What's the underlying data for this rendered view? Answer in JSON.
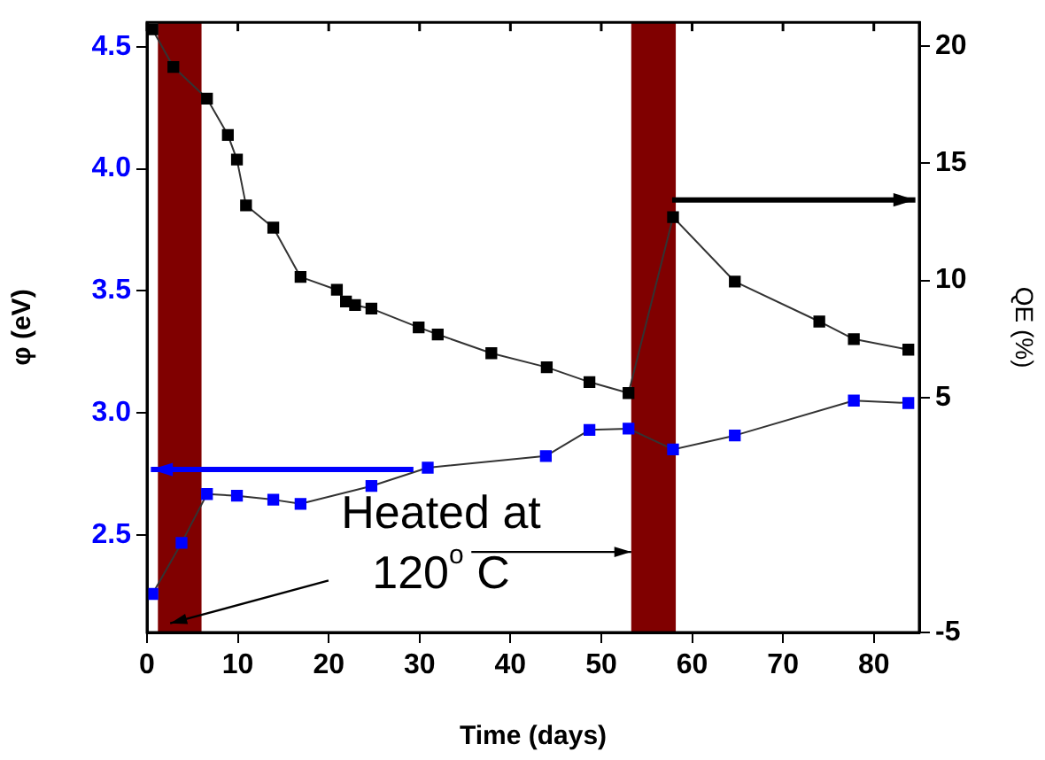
{
  "chart_data": {
    "type": "line",
    "xlabel": "Time (days)",
    "ylabel": "φ (eV)",
    "y2label": "QE (%)",
    "xlim": [
      0,
      85
    ],
    "xticks": [
      0,
      10,
      20,
      30,
      40,
      50,
      60,
      70,
      80
    ],
    "ylim": [
      2.1,
      4.6
    ],
    "yticks": [
      {
        "value": 2.5,
        "label": "2.5"
      },
      {
        "value": 3,
        "label": "3.0"
      },
      {
        "value": 3.5,
        "label": "3.5"
      },
      {
        "value": 4,
        "label": "4.0"
      },
      {
        "value": 4.5,
        "label": "4.5"
      }
    ],
    "y2lim": [
      -5,
      21
    ],
    "y2ticks": [
      -5,
      5,
      10,
      15,
      20
    ],
    "series": [
      {
        "color": "#000000",
        "axis": "y2",
        "x": [
          0.6,
          2.9,
          6.6,
          8.9,
          9.9,
          10.9,
          13.9,
          16.9,
          20.9,
          21.9,
          22.9,
          24.7,
          29.9,
          32.0,
          37.9,
          44.0,
          48.7,
          53.0,
          57.9,
          64.7,
          74.0,
          77.8,
          83.8
        ],
        "values": [
          20.7,
          19.1,
          17.75,
          16.2,
          15.15,
          13.2,
          12.25,
          10.15,
          9.6,
          9.1,
          8.95,
          8.8,
          8.0,
          7.7,
          6.9,
          6.3,
          5.67,
          5.2,
          12.7,
          9.95,
          8.25,
          7.5,
          7.05
        ]
      },
      {
        "color": "#0000ff",
        "axis": "y",
        "x": [
          0.6,
          3.8,
          6.6,
          9.9,
          13.9,
          16.9,
          24.7,
          30.9,
          43.9,
          48.7,
          53.0,
          57.9,
          64.7,
          77.8,
          83.8
        ],
        "values": [
          2.258,
          2.467,
          2.667,
          2.66,
          2.644,
          2.627,
          2.7,
          2.775,
          2.823,
          2.93,
          2.935,
          2.85,
          2.907,
          3.05,
          3.04
        ]
      }
    ],
    "bands": [
      {
        "axis": "x",
        "from": 1.2,
        "to": 6.0,
        "color": "#800000"
      },
      {
        "axis": "x",
        "from": 53.3,
        "to": 58.2,
        "color": "#800000"
      }
    ],
    "annotations": [
      {
        "text": "Heated at 120$^{o}$ C",
        "x": 53.3,
        "y": 2.43
      }
    ],
    "marker": "square",
    "line_style": "solid",
    "grid": false,
    "legend": false
  }
}
